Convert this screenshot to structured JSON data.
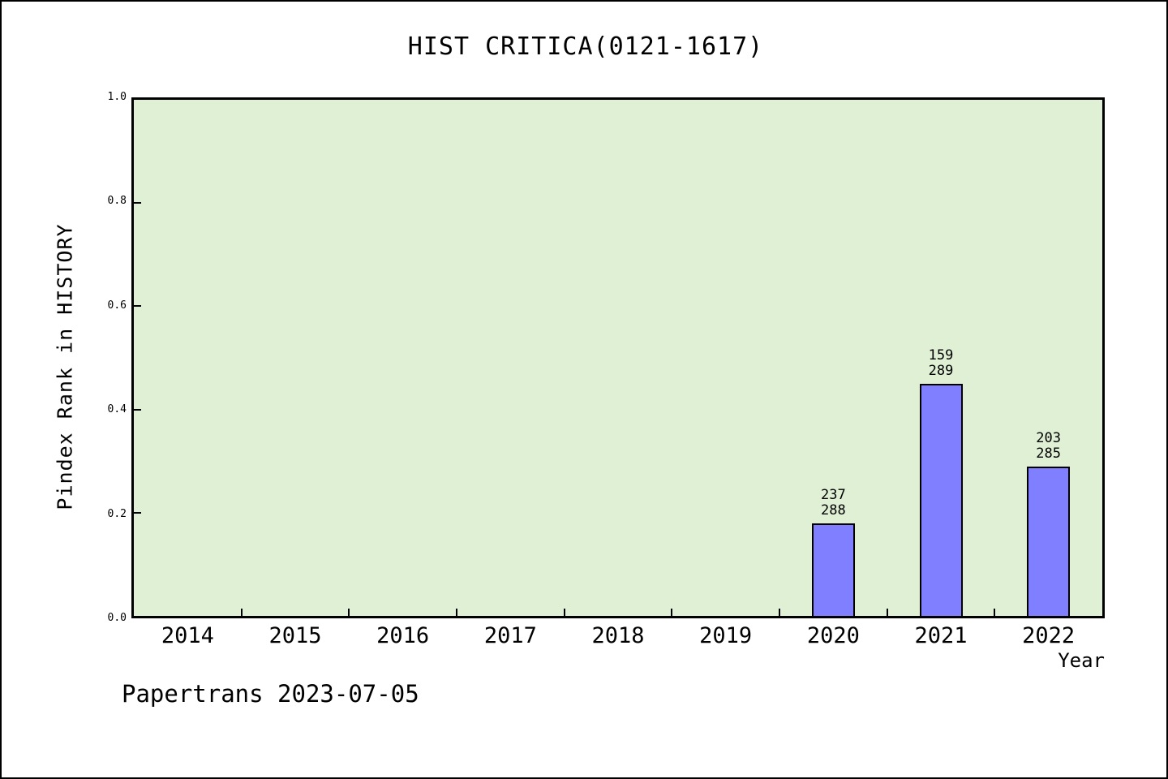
{
  "title": "HIST CRITICA(0121-1617)",
  "footer": "Papertrans 2023-07-05",
  "chart_data": {
    "type": "bar",
    "title": "HIST CRITICA(0121-1617)",
    "xlabel": "Year",
    "ylabel": "Pindex Rank in HISTORY",
    "categories": [
      "2014",
      "2015",
      "2016",
      "2017",
      "2018",
      "2019",
      "2020",
      "2021",
      "2022"
    ],
    "bars": [
      {
        "year": "2020",
        "rank": "237",
        "total": "288",
        "value": 0.18
      },
      {
        "year": "2021",
        "rank": "159",
        "total": "289",
        "value": 0.45
      },
      {
        "year": "2022",
        "rank": "203",
        "total": "285",
        "value": 0.29
      }
    ],
    "ylim": [
      0.0,
      1.0
    ],
    "y_ticks": [
      "1.0",
      "0.8",
      "0.6",
      "0.4",
      "0.2",
      "0.0"
    ],
    "grid": "off",
    "legend": "none",
    "colors": {
      "bar_fill": "#7f7fff",
      "bar_edge": "#000000",
      "plot_bg": "#dff0d4",
      "figure_bg": "#ffffff",
      "text": "#000000"
    }
  }
}
